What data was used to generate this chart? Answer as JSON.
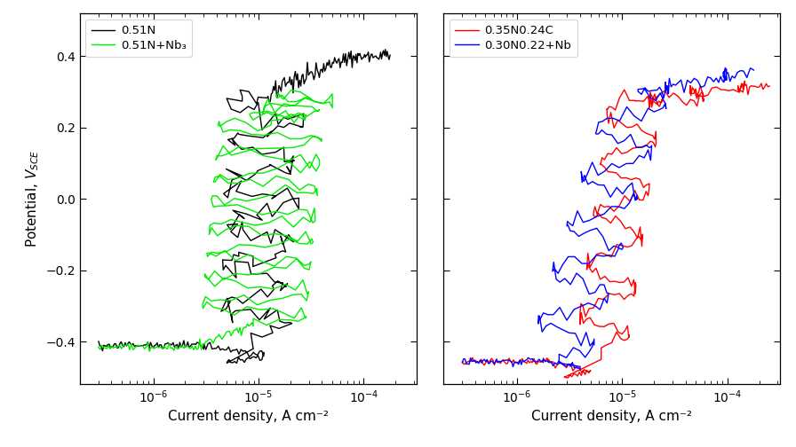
{
  "left_panel": {
    "legend_labels": [
      "0.51N",
      "0.51N+Nb₃"
    ],
    "colors": [
      "black",
      "#00ee00"
    ],
    "xlabel": "Current density, A cm⁻²",
    "xlim_log": [
      -6.7,
      -3.5
    ],
    "ylim": [
      -0.52,
      0.52
    ]
  },
  "right_panel": {
    "legend_labels": [
      "0.35N0.24C",
      "0.30N0.22+Nb"
    ],
    "colors": [
      "red",
      "blue"
    ],
    "xlabel": "Current density, A cm⁻²",
    "xlim_log": [
      -6.7,
      -3.5
    ],
    "ylim": [
      -0.52,
      0.52
    ]
  },
  "yticks": [
    -0.4,
    -0.2,
    0.0,
    0.2,
    0.4
  ],
  "ylabel": "Potential, $V_{SCE}$",
  "background_color": "white",
  "linewidth": 1.0
}
